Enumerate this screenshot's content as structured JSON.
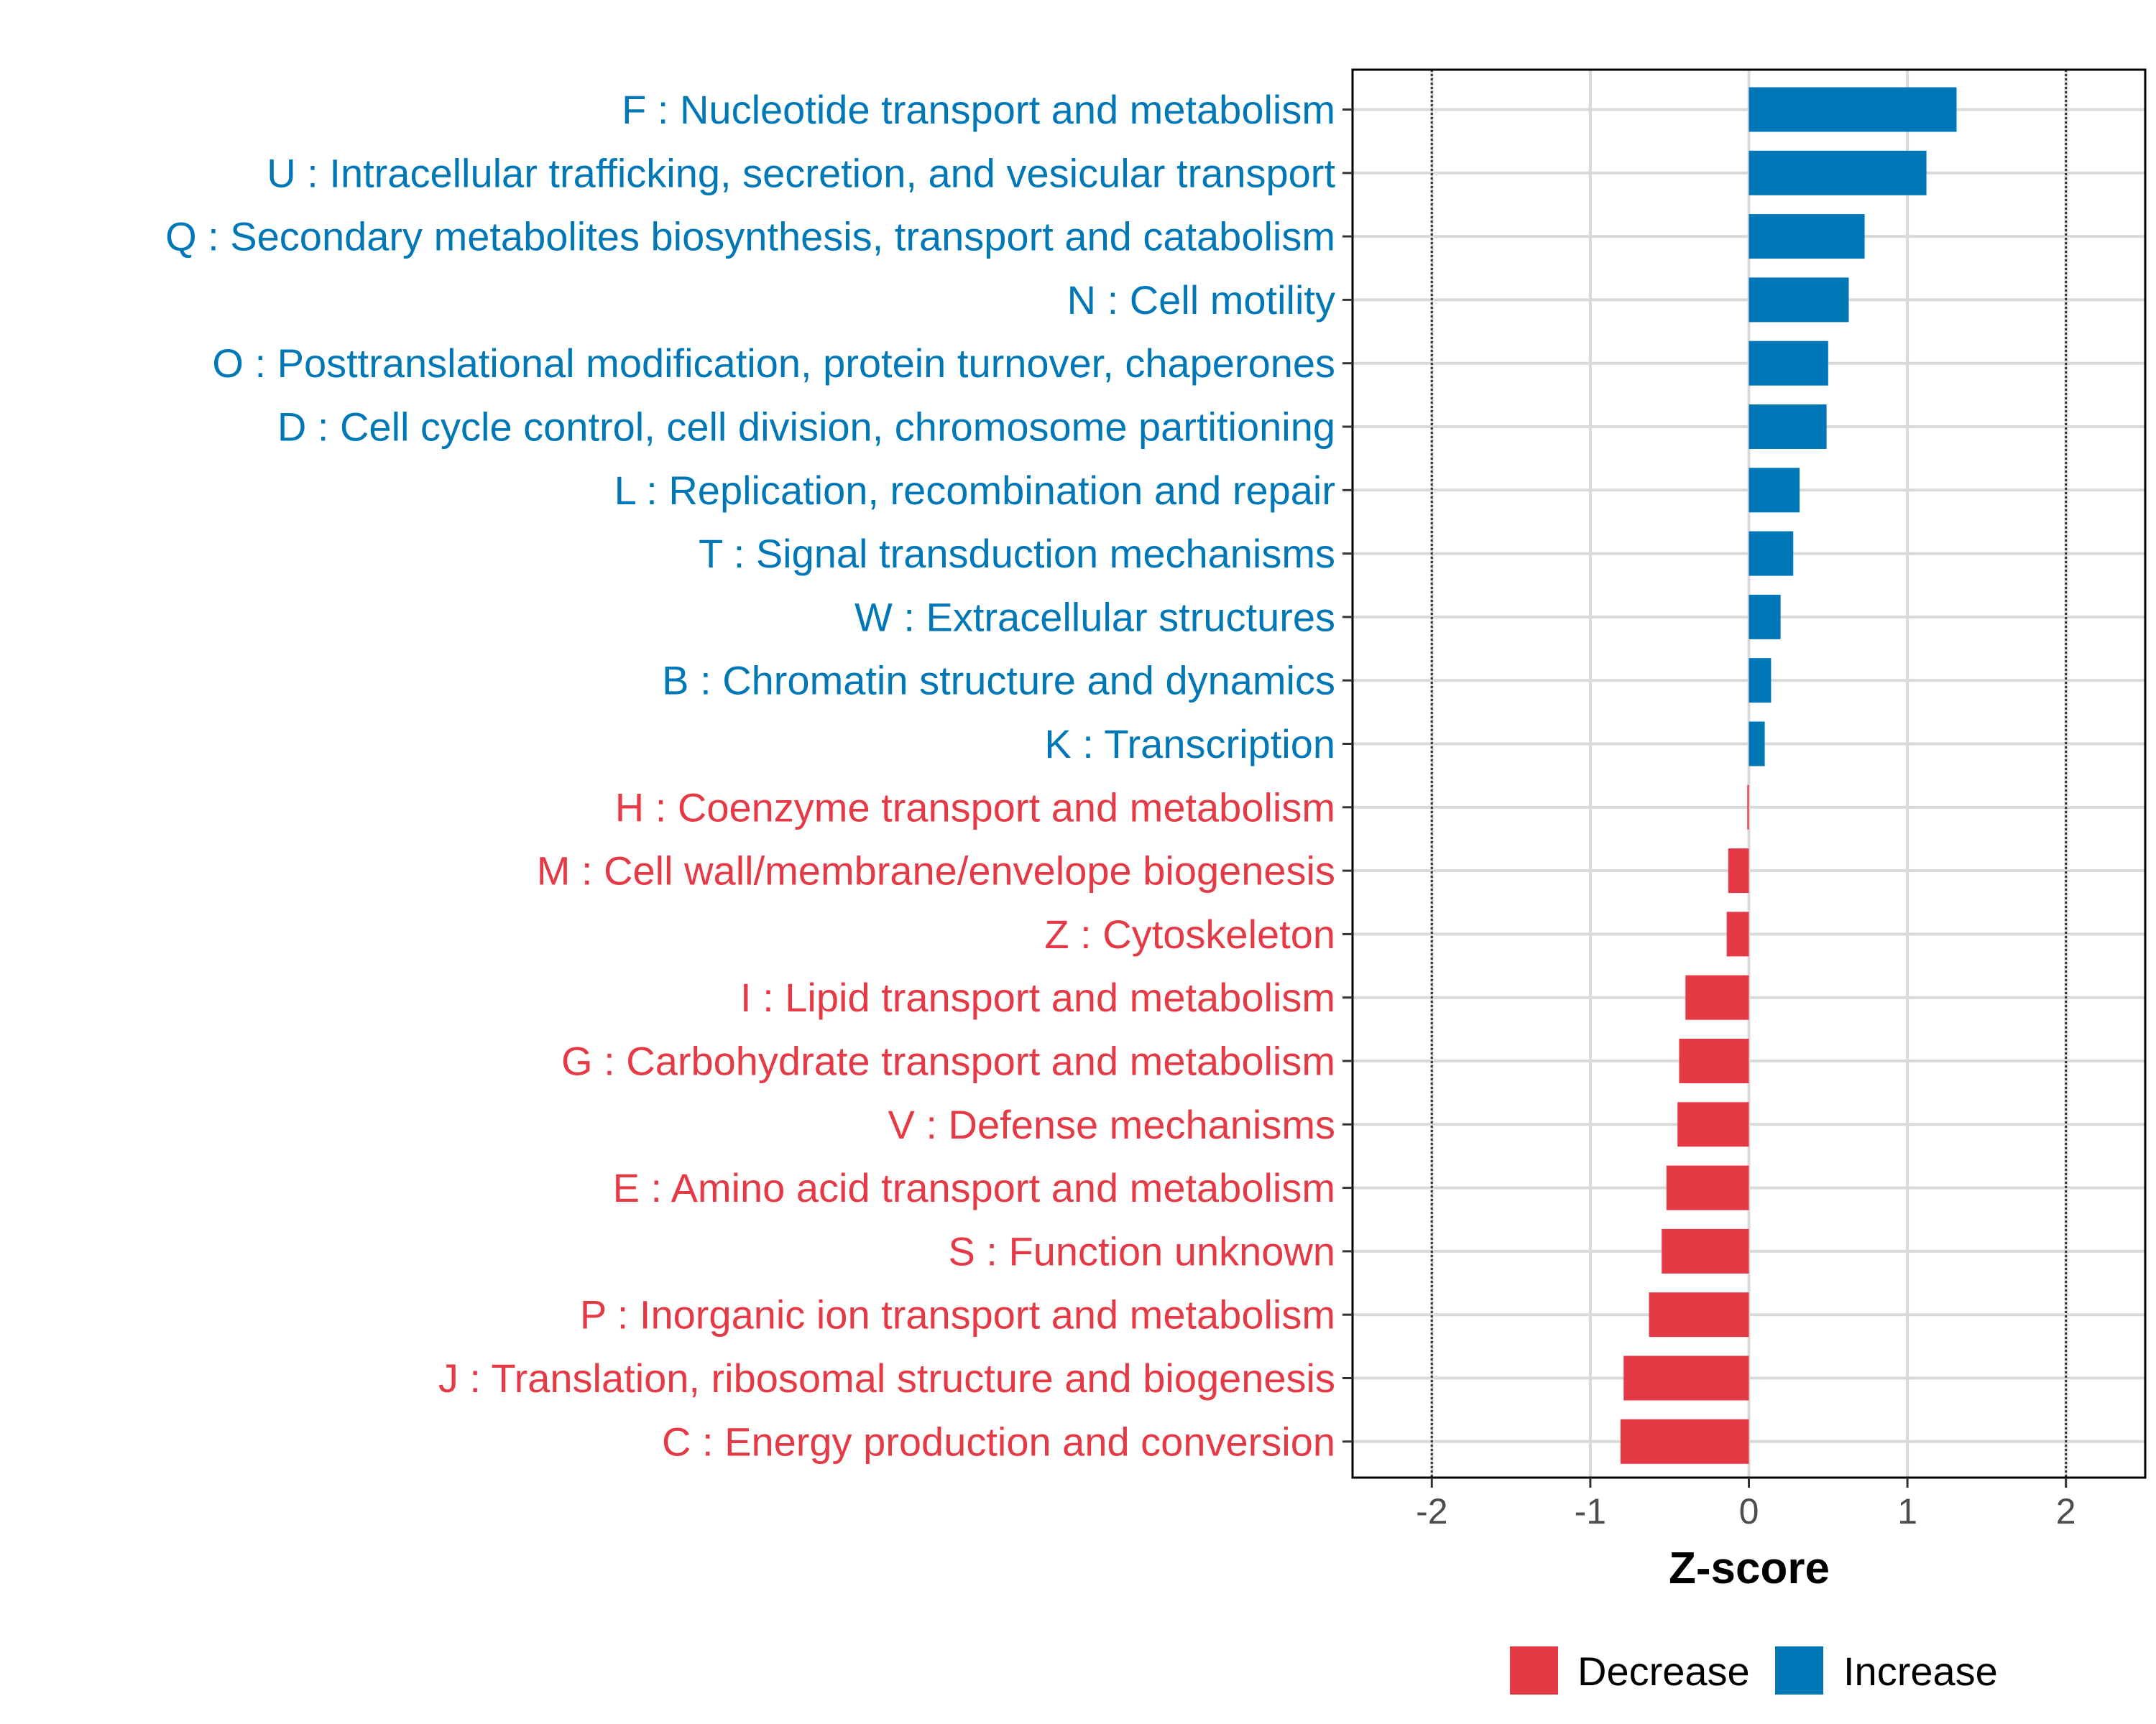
{
  "chart_data": {
    "type": "bar",
    "orientation": "horizontal",
    "xlabel": "Z-score",
    "xlim": [
      -2.5,
      2.5
    ],
    "x_ticks": [
      -2,
      -1,
      0,
      1,
      2
    ],
    "x_tick_labels": [
      "-2",
      "-1",
      "0",
      "1",
      "2"
    ],
    "reference_lines": [
      -2,
      2
    ],
    "grid": true,
    "colors": {
      "Decrease": "#e63946",
      "Increase": "#0077b6"
    },
    "legend": {
      "position": "bottom",
      "entries": [
        {
          "name": "Decrease",
          "color": "#e63946"
        },
        {
          "name": "Increase",
          "color": "#0077b6"
        }
      ]
    },
    "categories": [
      "F : Nucleotide transport and metabolism",
      "U : Intracellular trafficking, secretion, and vesicular transport",
      "Q : Secondary metabolites biosynthesis, transport and catabolism",
      "N : Cell motility",
      "O : Posttranslational modification, protein turnover, chaperones",
      "D : Cell cycle control, cell division, chromosome partitioning",
      "L : Replication, recombination and repair",
      "T : Signal transduction mechanisms",
      "W : Extracellular structures",
      "B : Chromatin structure and dynamics",
      "K : Transcription",
      "H : Coenzyme transport and metabolism",
      "M : Cell wall/membrane/envelope biogenesis",
      "Z : Cytoskeleton",
      "I : Lipid transport and metabolism",
      "G : Carbohydrate transport and metabolism",
      "V : Defense mechanisms",
      "E : Amino acid transport and metabolism",
      "S : Function unknown",
      "P : Inorganic ion transport and metabolism",
      "J : Translation, ribosomal structure and biogenesis",
      "C : Energy production and conversion"
    ],
    "values": [
      1.31,
      1.12,
      0.73,
      0.63,
      0.5,
      0.49,
      0.32,
      0.28,
      0.2,
      0.14,
      0.1,
      -0.01,
      -0.13,
      -0.14,
      -0.4,
      -0.44,
      -0.45,
      -0.52,
      -0.55,
      -0.63,
      -0.79,
      -0.81
    ],
    "groups": [
      "Increase",
      "Increase",
      "Increase",
      "Increase",
      "Increase",
      "Increase",
      "Increase",
      "Increase",
      "Increase",
      "Increase",
      "Increase",
      "Decrease",
      "Decrease",
      "Decrease",
      "Decrease",
      "Decrease",
      "Decrease",
      "Decrease",
      "Decrease",
      "Decrease",
      "Decrease",
      "Decrease"
    ]
  }
}
